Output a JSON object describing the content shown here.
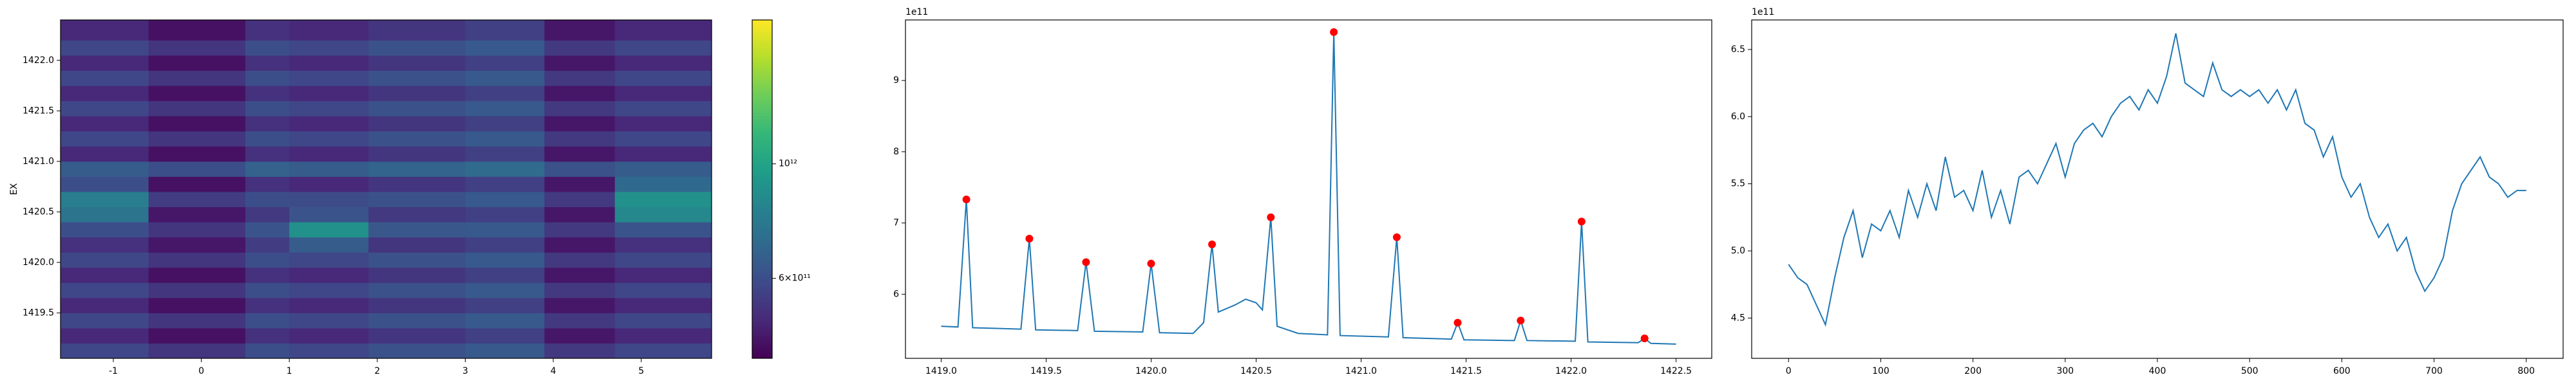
{
  "chart_data": [
    {
      "type": "heatmap",
      "ylabel": "EX",
      "x_edges": [
        -1.6,
        -0.6,
        0.5,
        1.0,
        1.9,
        3.0,
        3.9,
        4.7,
        5.8
      ],
      "y_edges": [
        1419.05,
        1419.2,
        1419.35,
        1419.5,
        1419.65,
        1419.8,
        1419.95,
        1420.1,
        1420.25,
        1420.4,
        1420.55,
        1420.7,
        1420.85,
        1421.0,
        1421.15,
        1421.3,
        1421.45,
        1421.6,
        1421.75,
        1421.9,
        1422.05,
        1422.2,
        1422.4
      ],
      "values": [
        [
          580000000000.0,
          530000000000.0,
          600000000000.0,
          580000000000.0,
          610000000000.0,
          640000000000.0,
          540000000000.0,
          580000000000.0
        ],
        [
          500000000000.0,
          450000000000.0,
          520000000000.0,
          500000000000.0,
          530000000000.0,
          560000000000.0,
          460000000000.0,
          500000000000.0
        ],
        [
          580000000000.0,
          530000000000.0,
          600000000000.0,
          580000000000.0,
          610000000000.0,
          640000000000.0,
          540000000000.0,
          580000000000.0
        ],
        [
          500000000000.0,
          450000000000.0,
          520000000000.0,
          500000000000.0,
          530000000000.0,
          560000000000.0,
          460000000000.0,
          500000000000.0
        ],
        [
          580000000000.0,
          530000000000.0,
          600000000000.0,
          580000000000.0,
          610000000000.0,
          640000000000.0,
          540000000000.0,
          580000000000.0
        ],
        [
          500000000000.0,
          450000000000.0,
          520000000000.0,
          500000000000.0,
          530000000000.0,
          560000000000.0,
          460000000000.0,
          500000000000.0
        ],
        [
          580000000000.0,
          530000000000.0,
          600000000000.0,
          580000000000.0,
          610000000000.0,
          640000000000.0,
          540000000000.0,
          580000000000.0
        ],
        [
          520000000000.0,
          460000000000.0,
          550000000000.0,
          650000000000.0,
          530000000000.0,
          560000000000.0,
          460000000000.0,
          520000000000.0
        ],
        [
          600000000000.0,
          530000000000.0,
          620000000000.0,
          900000000000.0,
          630000000000.0,
          640000000000.0,
          540000000000.0,
          620000000000.0
        ],
        [
          750000000000.0,
          460000000000.0,
          540000000000.0,
          620000000000.0,
          540000000000.0,
          560000000000.0,
          460000000000.0,
          850000000000.0
        ],
        [
          800000000000.0,
          550000000000.0,
          600000000000.0,
          590000000000.0,
          610000000000.0,
          640000000000.0,
          540000000000.0,
          900000000000.0
        ],
        [
          600000000000.0,
          450000000000.0,
          520000000000.0,
          500000000000.0,
          530000000000.0,
          560000000000.0,
          460000000000.0,
          700000000000.0
        ],
        [
          650000000000.0,
          600000000000.0,
          670000000000.0,
          650000000000.0,
          680000000000.0,
          710000000000.0,
          610000000000.0,
          650000000000.0
        ],
        [
          500000000000.0,
          450000000000.0,
          520000000000.0,
          500000000000.0,
          530000000000.0,
          560000000000.0,
          460000000000.0,
          500000000000.0
        ],
        [
          580000000000.0,
          530000000000.0,
          600000000000.0,
          580000000000.0,
          610000000000.0,
          640000000000.0,
          540000000000.0,
          580000000000.0
        ],
        [
          500000000000.0,
          450000000000.0,
          520000000000.0,
          500000000000.0,
          530000000000.0,
          560000000000.0,
          460000000000.0,
          500000000000.0
        ],
        [
          580000000000.0,
          530000000000.0,
          600000000000.0,
          580000000000.0,
          610000000000.0,
          640000000000.0,
          540000000000.0,
          580000000000.0
        ],
        [
          500000000000.0,
          450000000000.0,
          520000000000.0,
          500000000000.0,
          530000000000.0,
          560000000000.0,
          460000000000.0,
          500000000000.0
        ],
        [
          580000000000.0,
          530000000000.0,
          600000000000.0,
          580000000000.0,
          610000000000.0,
          640000000000.0,
          540000000000.0,
          580000000000.0
        ],
        [
          500000000000.0,
          450000000000.0,
          520000000000.0,
          500000000000.0,
          530000000000.0,
          560000000000.0,
          460000000000.0,
          500000000000.0
        ],
        [
          580000000000.0,
          530000000000.0,
          600000000000.0,
          580000000000.0,
          610000000000.0,
          640000000000.0,
          540000000000.0,
          580000000000.0
        ],
        [
          500000000000.0,
          450000000000.0,
          520000000000.0,
          500000000000.0,
          530000000000.0,
          560000000000.0,
          460000000000.0,
          500000000000.0
        ]
      ],
      "xlim": [
        -1.6,
        5.8
      ],
      "ylim": [
        1419.05,
        1422.4
      ],
      "xticks": [
        -1,
        0,
        1,
        2,
        3,
        4,
        5
      ],
      "yticks": [
        1419.5,
        {
          "value": 1420,
          "label": "1420.0"
        },
        1420.5,
        {
          "value": 1421,
          "label": "1421.0"
        },
        1421.5,
        {
          "value": 1422,
          "label": "1422.0"
        }
      ],
      "colorbar": {
        "scale": "log",
        "colormap": "viridis",
        "clim": [
          420000000000.0,
          1900000000000.0
        ],
        "ticks": [
          {
            "value": 1000000000000.0,
            "label": "10¹²"
          },
          {
            "value": 600000000000.0,
            "label": "6×10¹¹"
          }
        ]
      }
    },
    {
      "type": "line",
      "color": "#1f77b4",
      "offset_label": "1e11",
      "x": [
        1419.0,
        1419.08,
        1419.12,
        1419.15,
        1419.38,
        1419.42,
        1419.45,
        1419.65,
        1419.69,
        1419.73,
        1419.96,
        1420.0,
        1420.04,
        1420.2,
        1420.25,
        1420.29,
        1420.32,
        1420.4,
        1420.45,
        1420.5,
        1420.53,
        1420.57,
        1420.6,
        1420.7,
        1420.84,
        1420.87,
        1420.9,
        1421.13,
        1421.17,
        1421.2,
        1421.43,
        1421.46,
        1421.49,
        1421.73,
        1421.76,
        1421.79,
        1422.02,
        1422.05,
        1422.08,
        1422.32,
        1422.35,
        1422.38,
        1422.5
      ],
      "values": [
        5.55,
        5.54,
        7.33,
        5.53,
        5.51,
        6.78,
        5.5,
        5.49,
        6.45,
        5.48,
        5.47,
        6.43,
        5.46,
        5.45,
        5.6,
        6.7,
        5.75,
        5.85,
        5.93,
        5.88,
        5.78,
        7.08,
        5.55,
        5.45,
        5.43,
        9.68,
        5.42,
        5.4,
        6.8,
        5.39,
        5.37,
        5.6,
        5.36,
        5.35,
        5.63,
        5.35,
        5.34,
        7.02,
        5.33,
        5.32,
        5.38,
        5.31,
        5.3
      ],
      "markers": {
        "color": "red",
        "x": [
          1419.12,
          1419.42,
          1419.69,
          1420.0,
          1420.29,
          1420.57,
          1420.87,
          1421.17,
          1421.46,
          1421.76,
          1422.05,
          1422.35
        ],
        "values": [
          7.33,
          6.78,
          6.45,
          6.43,
          6.7,
          7.08,
          9.68,
          6.8,
          5.6,
          5.63,
          7.02,
          5.38
        ]
      },
      "xlim": [
        1418.83,
        1422.67
      ],
      "ylim": [
        5.1,
        9.85
      ],
      "xticks": [
        {
          "value": 1419,
          "label": "1419.0"
        },
        1419.5,
        {
          "value": 1420,
          "label": "1420.0"
        },
        1420.5,
        {
          "value": 1421,
          "label": "1421.0"
        },
        1421.5,
        {
          "value": 1422,
          "label": "1422.0"
        },
        1422.5
      ],
      "yticks": [
        6,
        7,
        8,
        9
      ]
    },
    {
      "type": "line",
      "color": "#1f77b4",
      "offset_label": "1e11",
      "x": [
        0,
        10,
        20,
        30,
        40,
        50,
        60,
        70,
        80,
        90,
        100,
        110,
        120,
        130,
        140,
        150,
        160,
        170,
        180,
        190,
        200,
        210,
        220,
        230,
        240,
        250,
        260,
        270,
        280,
        290,
        300,
        310,
        320,
        330,
        340,
        350,
        360,
        370,
        380,
        390,
        400,
        410,
        420,
        430,
        440,
        450,
        460,
        470,
        480,
        490,
        500,
        510,
        520,
        530,
        540,
        550,
        560,
        570,
        580,
        590,
        600,
        610,
        620,
        630,
        640,
        650,
        660,
        670,
        680,
        690,
        700,
        710,
        720,
        730,
        740,
        750,
        760,
        770,
        780,
        790,
        800
      ],
      "values": [
        4.9,
        4.8,
        4.75,
        4.6,
        4.45,
        4.8,
        5.1,
        5.3,
        4.95,
        5.2,
        5.15,
        5.3,
        5.1,
        5.45,
        5.25,
        5.5,
        5.3,
        5.7,
        5.4,
        5.45,
        5.3,
        5.6,
        5.25,
        5.45,
        5.2,
        5.55,
        5.6,
        5.5,
        5.65,
        5.8,
        5.55,
        5.8,
        5.9,
        5.95,
        5.85,
        6.0,
        6.1,
        6.15,
        6.05,
        6.2,
        6.1,
        6.3,
        6.62,
        6.25,
        6.2,
        6.15,
        6.4,
        6.2,
        6.15,
        6.2,
        6.15,
        6.2,
        6.1,
        6.2,
        6.05,
        6.2,
        5.95,
        5.9,
        5.7,
        5.85,
        5.55,
        5.4,
        5.5,
        5.25,
        5.1,
        5.2,
        5.0,
        5.1,
        4.85,
        4.7,
        4.8,
        4.95,
        5.3,
        5.5,
        5.6,
        5.7,
        5.55,
        5.5,
        5.4,
        5.45,
        5.45
      ],
      "xlim": [
        -40,
        840
      ],
      "ylim": [
        4.2,
        6.72
      ],
      "xticks": [
        0,
        100,
        200,
        300,
        400,
        500,
        600,
        700,
        800
      ],
      "yticks": [
        4.5,
        {
          "value": 5,
          "label": "5.0"
        },
        5.5,
        {
          "value": 6,
          "label": "6.0"
        },
        6.5
      ]
    }
  ]
}
